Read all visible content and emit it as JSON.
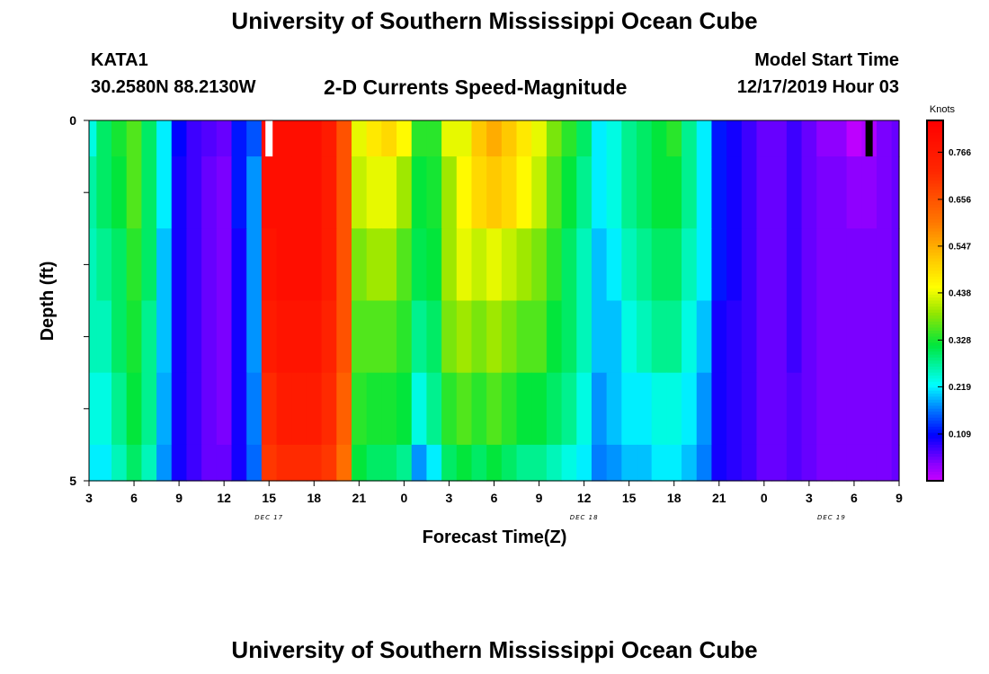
{
  "header": {
    "title": "University of Southern Mississippi Ocean Cube",
    "station_id": "KATA1",
    "station_location": "30.2580N 88.2130W",
    "chart_title": "2-D Currents Speed-Magnitude",
    "model_start_label": "Model Start Time",
    "model_start_value": "12/17/2019 Hour 03"
  },
  "footer": {
    "title": "University of Southern Mississippi Ocean Cube"
  },
  "chart_data": {
    "type": "heatmap",
    "title": "2-D Currents Speed-Magnitude",
    "xlabel": "Forecast Time(Z)",
    "ylabel": "Depth (ft)",
    "x_tick_labels": [
      "3",
      "6",
      "9",
      "12",
      "15",
      "18",
      "21",
      "0",
      "3",
      "6",
      "9",
      "12",
      "15",
      "18",
      "21",
      "0",
      "3",
      "6",
      "9"
    ],
    "x_day_labels": [
      {
        "label": "DEC 17",
        "at_tick": 4
      },
      {
        "label": "DEC 18",
        "at_tick": 11
      },
      {
        "label": "DEC 19",
        "at_tick": 16.5
      }
    ],
    "y_tick_labels": [
      {
        "value": 0,
        "label": "0"
      },
      {
        "value": 5,
        "label": "5"
      }
    ],
    "ylim": [
      0,
      5
    ],
    "start_hour": 3,
    "end_hour": 57,
    "colorbar": {
      "title": "Knots",
      "min": 0.0,
      "max": 0.84,
      "ticks": [
        0.109,
        0.219,
        0.328,
        0.438,
        0.547,
        0.656,
        0.766
      ],
      "tick_labels": [
        "0.109",
        "0.219",
        "0.328",
        "0.438",
        "0.547",
        "0.656",
        "0.766"
      ]
    },
    "depth_layers": [
      "0-0.5 ft",
      "0.5-1.5 ft",
      "1.5-2.5 ft",
      "2.5-3.5 ft",
      "3.5-4.5 ft",
      "4.5-5 ft"
    ],
    "column_hours": [
      3,
      4,
      5,
      6,
      7,
      8,
      9,
      10,
      11,
      12,
      13,
      14,
      15,
      16,
      17,
      18,
      19,
      20,
      21,
      22,
      23,
      24,
      25,
      26,
      27,
      28,
      29,
      30,
      31,
      32,
      33,
      34,
      35,
      36,
      37,
      38,
      39,
      40,
      41,
      42,
      43,
      44,
      45,
      46,
      47,
      48,
      49,
      50,
      51,
      52,
      53,
      54,
      55,
      56,
      57
    ],
    "speed_knots": [
      [
        0.24,
        0.3,
        0.33,
        0.36,
        0.3,
        0.22,
        0.11,
        0.08,
        0.07,
        0.06,
        0.12,
        0.15,
        0.8,
        0.8,
        0.8,
        0.8,
        0.76,
        0.66,
        0.44,
        0.48,
        0.5,
        0.46,
        0.34,
        0.34,
        0.44,
        0.44,
        0.52,
        0.55,
        0.52,
        0.48,
        0.44,
        0.38,
        0.34,
        0.3,
        0.22,
        0.24,
        0.28,
        0.3,
        0.32,
        0.34,
        0.28,
        0.22,
        0.12,
        0.1,
        0.08,
        0.06,
        0.06,
        0.08,
        0.06,
        0.04,
        0.04,
        0.01,
        0.02,
        0.05,
        0.06
      ],
      [
        0.27,
        0.3,
        0.32,
        0.36,
        0.3,
        0.22,
        0.1,
        0.08,
        0.06,
        0.05,
        0.12,
        0.18,
        0.8,
        0.8,
        0.8,
        0.8,
        0.76,
        0.66,
        0.42,
        0.44,
        0.44,
        0.4,
        0.32,
        0.33,
        0.4,
        0.46,
        0.5,
        0.52,
        0.5,
        0.46,
        0.42,
        0.36,
        0.32,
        0.28,
        0.22,
        0.24,
        0.28,
        0.3,
        0.32,
        0.32,
        0.28,
        0.22,
        0.12,
        0.1,
        0.08,
        0.06,
        0.06,
        0.08,
        0.06,
        0.05,
        0.05,
        0.04,
        0.04,
        0.05,
        0.06
      ],
      [
        0.26,
        0.28,
        0.3,
        0.34,
        0.3,
        0.2,
        0.1,
        0.08,
        0.06,
        0.05,
        0.1,
        0.18,
        0.78,
        0.8,
        0.8,
        0.8,
        0.76,
        0.66,
        0.38,
        0.4,
        0.4,
        0.36,
        0.31,
        0.32,
        0.4,
        0.44,
        0.42,
        0.44,
        0.42,
        0.4,
        0.38,
        0.34,
        0.3,
        0.26,
        0.2,
        0.22,
        0.26,
        0.28,
        0.3,
        0.3,
        0.26,
        0.22,
        0.12,
        0.1,
        0.08,
        0.06,
        0.06,
        0.08,
        0.06,
        0.05,
        0.05,
        0.05,
        0.05,
        0.05,
        0.06
      ],
      [
        0.26,
        0.26,
        0.3,
        0.33,
        0.28,
        0.2,
        0.1,
        0.08,
        0.06,
        0.05,
        0.1,
        0.18,
        0.76,
        0.78,
        0.78,
        0.78,
        0.74,
        0.66,
        0.36,
        0.36,
        0.36,
        0.34,
        0.28,
        0.3,
        0.38,
        0.4,
        0.38,
        0.4,
        0.38,
        0.36,
        0.36,
        0.32,
        0.3,
        0.26,
        0.2,
        0.2,
        0.24,
        0.26,
        0.28,
        0.28,
        0.24,
        0.2,
        0.1,
        0.09,
        0.08,
        0.06,
        0.06,
        0.08,
        0.06,
        0.05,
        0.05,
        0.05,
        0.05,
        0.05,
        0.06
      ],
      [
        0.24,
        0.24,
        0.28,
        0.32,
        0.28,
        0.19,
        0.1,
        0.08,
        0.06,
        0.05,
        0.1,
        0.17,
        0.72,
        0.76,
        0.76,
        0.76,
        0.72,
        0.64,
        0.34,
        0.33,
        0.33,
        0.32,
        0.24,
        0.28,
        0.34,
        0.36,
        0.34,
        0.36,
        0.34,
        0.32,
        0.32,
        0.3,
        0.28,
        0.24,
        0.18,
        0.2,
        0.22,
        0.22,
        0.24,
        0.24,
        0.22,
        0.18,
        0.1,
        0.09,
        0.08,
        0.06,
        0.06,
        0.07,
        0.06,
        0.05,
        0.05,
        0.05,
        0.05,
        0.05,
        0.06
      ],
      [
        0.22,
        0.22,
        0.26,
        0.3,
        0.26,
        0.18,
        0.1,
        0.08,
        0.06,
        0.06,
        0.1,
        0.16,
        0.7,
        0.72,
        0.72,
        0.72,
        0.7,
        0.62,
        0.32,
        0.3,
        0.3,
        0.28,
        0.18,
        0.22,
        0.3,
        0.32,
        0.3,
        0.32,
        0.3,
        0.28,
        0.28,
        0.26,
        0.24,
        0.22,
        0.17,
        0.18,
        0.2,
        0.2,
        0.22,
        0.22,
        0.2,
        0.17,
        0.1,
        0.09,
        0.08,
        0.06,
        0.06,
        0.07,
        0.06,
        0.05,
        0.05,
        0.05,
        0.05,
        0.05,
        0.06
      ]
    ],
    "top_layer_markers": [
      {
        "hour": 15,
        "color": "#ffffff"
      },
      {
        "hour": 55,
        "color": "#000000"
      }
    ]
  }
}
